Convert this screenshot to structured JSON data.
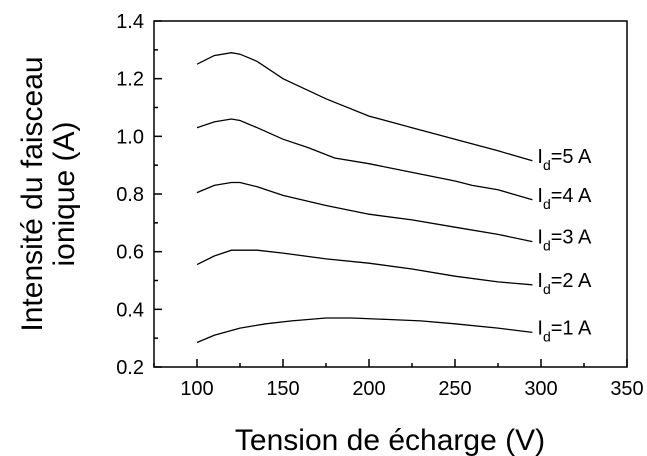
{
  "chart_data": {
    "type": "line",
    "xlabel": "Tension de écharge (V)",
    "ylabel_line1": "Intensité du faisceau",
    "ylabel_line2": "ionique (A)",
    "xlim": [
      75,
      350
    ],
    "ylim": [
      0.2,
      1.4
    ],
    "xticks": [
      100,
      150,
      200,
      250,
      300,
      350
    ],
    "yticks": [
      0.2,
      0.4,
      0.6,
      0.8,
      1.0,
      1.2,
      1.4
    ],
    "ytick_labels": [
      "0.2",
      "0.4",
      "0.6",
      "0.8",
      "1.0",
      "1.2",
      "1.4"
    ],
    "grid": false,
    "series": [
      {
        "label_main": "I",
        "label_sub": "d",
        "label_rest": "=5 A",
        "x": [
          100,
          110,
          120,
          125,
          135,
          150,
          175,
          200,
          225,
          250,
          275,
          295
        ],
        "y": [
          1.25,
          1.28,
          1.29,
          1.285,
          1.26,
          1.2,
          1.13,
          1.07,
          1.03,
          0.99,
          0.95,
          0.915
        ]
      },
      {
        "label_main": "I",
        "label_sub": "d",
        "label_rest": "=4 A",
        "x": [
          100,
          110,
          120,
          125,
          135,
          150,
          165,
          180,
          200,
          225,
          250,
          260,
          275,
          295
        ],
        "y": [
          1.03,
          1.05,
          1.06,
          1.055,
          1.03,
          0.99,
          0.96,
          0.925,
          0.905,
          0.875,
          0.845,
          0.83,
          0.815,
          0.78
        ]
      },
      {
        "label_main": "I",
        "label_sub": "d",
        "label_rest": "=3 A",
        "x": [
          100,
          110,
          120,
          125,
          135,
          150,
          175,
          200,
          225,
          250,
          275,
          295
        ],
        "y": [
          0.805,
          0.83,
          0.84,
          0.84,
          0.825,
          0.795,
          0.76,
          0.73,
          0.71,
          0.685,
          0.66,
          0.635
        ]
      },
      {
        "label_main": "I",
        "label_sub": "d",
        "label_rest": "=2 A",
        "x": [
          100,
          110,
          120,
          125,
          135,
          150,
          175,
          200,
          225,
          250,
          275,
          295
        ],
        "y": [
          0.555,
          0.585,
          0.605,
          0.605,
          0.605,
          0.595,
          0.575,
          0.56,
          0.54,
          0.515,
          0.495,
          0.485
        ]
      },
      {
        "label_main": "I",
        "label_sub": "d",
        "label_rest": "=1 A",
        "x": [
          100,
          110,
          125,
          140,
          155,
          175,
          190,
          210,
          230,
          250,
          275,
          295
        ],
        "y": [
          0.285,
          0.31,
          0.335,
          0.35,
          0.36,
          0.37,
          0.37,
          0.365,
          0.36,
          0.35,
          0.335,
          0.32
        ]
      }
    ]
  }
}
